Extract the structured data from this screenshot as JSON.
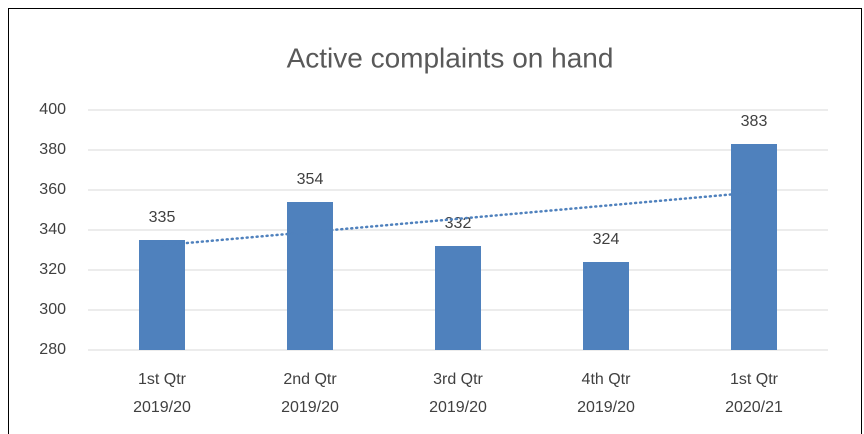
{
  "chart_data": {
    "type": "bar",
    "title": "Active complaints on hand",
    "categories": [
      [
        "1st Qtr",
        "2019/20"
      ],
      [
        "2nd Qtr",
        "2019/20"
      ],
      [
        "3rd Qtr",
        "2019/20"
      ],
      [
        "4th Qtr",
        "2019/20"
      ],
      [
        "1st Qtr",
        "2020/21"
      ]
    ],
    "values": [
      335,
      354,
      332,
      324,
      383
    ],
    "color": "#4f81bd",
    "ylim": [
      280,
      400
    ],
    "yticks": [
      280,
      300,
      320,
      340,
      360,
      380,
      400
    ],
    "grid": true,
    "trendline": "linear"
  }
}
